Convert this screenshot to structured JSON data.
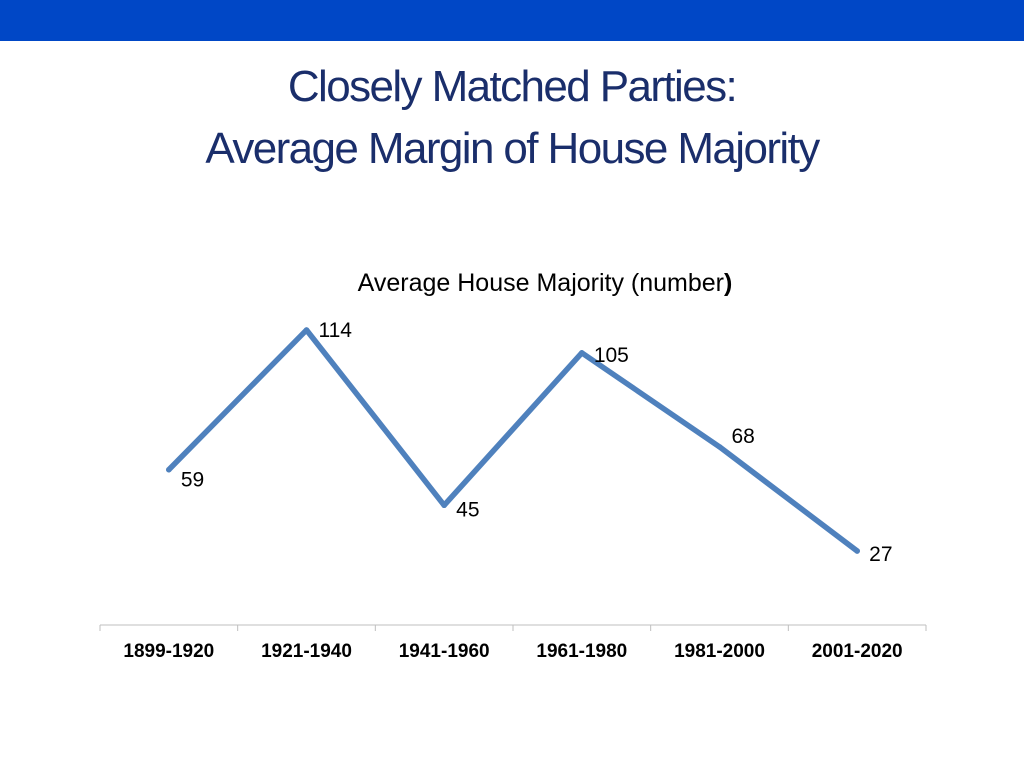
{
  "colors": {
    "top_band": "#0047c6",
    "title_text": "#1a2e6b",
    "series_line": "#4f81bd",
    "axis": "#bfbfbf"
  },
  "slide": {
    "title_line1": "Closely Matched Parties:",
    "title_line2": "Average Margin of House Majority"
  },
  "chart_data": {
    "type": "line",
    "title": "Average House Majority (number",
    "title_suffix": ")",
    "categories": [
      "1899-1920",
      "1921-1940",
      "1941-1960",
      "1961-1980",
      "1981-2000",
      "2001-2020"
    ],
    "series": [
      {
        "name": "Average House Majority",
        "values": [
          59,
          114,
          45,
          105,
          68,
          27
        ]
      }
    ],
    "xlabel": "",
    "ylabel": "",
    "ylim": [
      0,
      120
    ],
    "grid": false,
    "legend": "none"
  }
}
